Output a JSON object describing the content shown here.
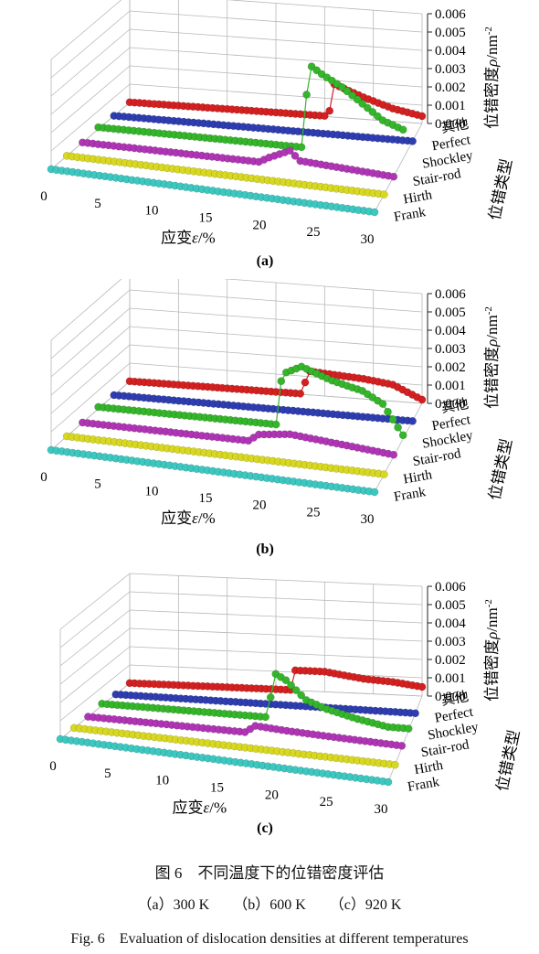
{
  "figure": {
    "caption_cn": "图 6　不同温度下的位错密度评估",
    "subcaptions": [
      "（a）300 K",
      "（b）600 K",
      "（c）920 K"
    ],
    "caption_en": "Fig. 6　Evaluation of dislocation densities at different temperatures"
  },
  "chart_data": [
    {
      "type": "line",
      "panel_label": "(a)",
      "xlabel_prefix": "应变",
      "xlabel_sym": "ε",
      "xlabel_suffix": "/%",
      "ylabel_prefix": "位错密度",
      "ylabel_sym": "ρ",
      "ylabel_suffix": "/nm",
      "ylabel_exp": "-2",
      "zlabel": "位错类型",
      "x_ticks": [
        0,
        5,
        10,
        15,
        20,
        25,
        30
      ],
      "xlim": [
        0,
        30
      ],
      "y_ticks": [
        "0.000",
        "0.001",
        "0.002",
        "0.003",
        "0.004",
        "0.005",
        "0.006"
      ],
      "ylim": [
        0,
        0.006
      ],
      "categories": [
        "其他",
        "Perfect",
        "Shockley",
        "Stair-rod",
        "Hirth",
        "Frank"
      ],
      "colors": [
        "#d42020",
        "#2e3db0",
        "#34b52a",
        "#b035b5",
        "#d8d820",
        "#3cc8c0"
      ],
      "series": [
        {
          "name": "其他",
          "x": [
            0,
            18,
            20.4,
            21,
            24,
            27,
            30
          ],
          "values": [
            1e-05,
            3e-05,
            3e-05,
            0.0018,
            0.0012,
            0.0007,
            0.0004
          ]
        },
        {
          "name": "Perfect",
          "x": [
            0,
            30
          ],
          "values": [
            0,
            0
          ]
        },
        {
          "name": "Shockley",
          "x": [
            0,
            20.4,
            20.5,
            20.9,
            22,
            24,
            26,
            28,
            30
          ],
          "values": [
            0.0001,
            0.0001,
            0.003,
            0.0046,
            0.0042,
            0.0036,
            0.0028,
            0.002,
            0.0016
          ]
        },
        {
          "name": "Stair-rod",
          "x": [
            0,
            17,
            18,
            20,
            21,
            24,
            27,
            30
          ],
          "values": [
            0,
            0,
            0.0003,
            0.0008,
            0.0003,
            0.0002,
            0.0001,
            0
          ]
        },
        {
          "name": "Hirth",
          "x": [
            0,
            30
          ],
          "values": [
            0,
            0
          ]
        },
        {
          "name": "Frank",
          "x": [
            0,
            30
          ],
          "values": [
            0,
            0
          ]
        }
      ]
    },
    {
      "type": "line",
      "panel_label": "(b)",
      "xlabel_prefix": "应变",
      "xlabel_sym": "ε",
      "xlabel_suffix": "/%",
      "ylabel_prefix": "位错密度",
      "ylabel_sym": "ρ",
      "ylabel_suffix": "/nm",
      "ylabel_exp": "-2",
      "zlabel": "位错类型",
      "x_ticks": [
        0,
        5,
        10,
        15,
        20,
        25,
        30
      ],
      "xlim": [
        0,
        30
      ],
      "y_ticks": [
        "0.000",
        "0.001",
        "0.002",
        "0.003",
        "0.004",
        "0.005",
        "0.006"
      ],
      "ylim": [
        0,
        0.006
      ],
      "categories": [
        "其他",
        "Perfect",
        "Shockley",
        "Stair-rod",
        "Hirth",
        "Frank"
      ],
      "colors": [
        "#d42020",
        "#2e3db0",
        "#34b52a",
        "#b035b5",
        "#d8d820",
        "#3cc8c0"
      ],
      "series": [
        {
          "name": "其他",
          "x": [
            0,
            17.8,
            18.2,
            21,
            24,
            27,
            30
          ],
          "values": [
            1e-05,
            3e-05,
            0.0013,
            0.0012,
            0.0011,
            0.0009,
            0.0002
          ]
        },
        {
          "name": "Perfect",
          "x": [
            0,
            30
          ],
          "values": [
            0,
            0
          ]
        },
        {
          "name": "Shockley",
          "x": [
            0,
            17.8,
            17.9,
            18.5,
            20,
            23,
            26,
            28,
            30
          ],
          "values": [
            0.0001,
            0.0001,
            0.0024,
            0.003,
            0.0034,
            0.0028,
            0.0024,
            0.0018,
            0.0002
          ]
        },
        {
          "name": "Stair-rod",
          "x": [
            0,
            16,
            17,
            20,
            24,
            30
          ],
          "values": [
            0,
            0,
            0.0004,
            0.0006,
            0.0004,
            0.0001
          ]
        },
        {
          "name": "Hirth",
          "x": [
            0,
            30
          ],
          "values": [
            0,
            0
          ]
        },
        {
          "name": "Frank",
          "x": [
            0,
            30
          ],
          "values": [
            0,
            0
          ]
        }
      ]
    },
    {
      "type": "line",
      "panel_label": "(c)",
      "xlabel_prefix": "应变",
      "xlabel_sym": "ε",
      "xlabel_suffix": "/%",
      "ylabel_prefix": "位错密度",
      "ylabel_sym": "ρ",
      "ylabel_suffix": "/nm",
      "ylabel_exp": "-2",
      "zlabel": "位错类型",
      "x_ticks": [
        0,
        5,
        10,
        15,
        20,
        25,
        30
      ],
      "xlim": [
        0,
        30
      ],
      "y_ticks": [
        "0.000",
        "0.001",
        "0.002",
        "0.003",
        "0.004",
        "0.005",
        "0.006"
      ],
      "ylim": [
        0,
        0.006
      ],
      "categories": [
        "其他",
        "Perfect",
        "Shockley",
        "Stair-rod",
        "Hirth",
        "Frank"
      ],
      "colors": [
        "#d42020",
        "#2e3db0",
        "#34b52a",
        "#b035b5",
        "#d8d820",
        "#3cc8c0"
      ],
      "series": [
        {
          "name": "其他",
          "x": [
            0,
            16.5,
            17,
            20,
            24,
            27,
            30
          ],
          "values": [
            1e-05,
            2e-05,
            0.0011,
            0.0011,
            0.0008,
            0.0007,
            0.0005
          ]
        },
        {
          "name": "Perfect",
          "x": [
            0,
            30
          ],
          "values": [
            0,
            0
          ]
        },
        {
          "name": "Shockley",
          "x": [
            0,
            16.4,
            16.5,
            17,
            18,
            20,
            22,
            25,
            28,
            30
          ],
          "values": [
            0.0001,
            0.0001,
            0.0012,
            0.0025,
            0.0022,
            0.0012,
            0.0008,
            0.0004,
            0.0001,
            0.0001
          ]
        },
        {
          "name": "Stair-rod",
          "x": [
            0,
            15,
            16,
            19,
            24,
            30
          ],
          "values": [
            0,
            0,
            0.0004,
            0.0003,
            0.0002,
            0.0001
          ]
        },
        {
          "name": "Hirth",
          "x": [
            0,
            30
          ],
          "values": [
            0,
            0
          ]
        },
        {
          "name": "Frank",
          "x": [
            0,
            30
          ],
          "values": [
            0,
            0
          ]
        }
      ]
    }
  ]
}
